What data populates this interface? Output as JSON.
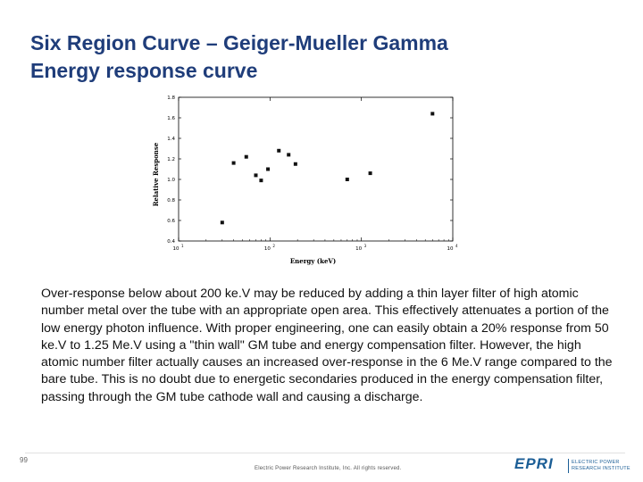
{
  "slide": {
    "title_line1": "Six Region Curve – Geiger-Mueller Gamma",
    "title_line2": "Energy response curve",
    "body": "Over-response below about 200 ke.V may be reduced by adding a thin layer filter of high atomic number metal over the tube with an appropriate open area. This effectively attenuates a portion of the low energy photon influence. With proper engineering, one can easily obtain a 20% response from 50 ke.V to 1.25 Me.V using a \"thin wall\" GM tube and energy compensation filter. However, the high atomic number filter actually causes an increased over-response in the 6 Me.V range compared to the bare tube. This is no doubt due to energetic secondaries produced in the energy compensation filter, passing through the GM tube cathode wall and causing a discharge.",
    "page_number": "99",
    "copyright": "Electric Power Research Institute, Inc. All rights reserved.",
    "logo": {
      "word": "EPRI",
      "line1": "ELECTRIC POWER",
      "line2": "RESEARCH INSTITUTE"
    }
  },
  "colors": {
    "title": "#1f3d7a",
    "logo": "#1b5e96",
    "points": "#111111"
  },
  "chart_data": {
    "type": "scatter",
    "xlabel": "Energy (keV)",
    "ylabel": "Relative Response",
    "xscale": "log",
    "xlim": [
      10,
      10000
    ],
    "ylim": [
      0.4,
      1.8
    ],
    "x_ticks": [
      {
        "value": 10,
        "base": "10",
        "exp": "1"
      },
      {
        "value": 100,
        "base": "10",
        "exp": "2"
      },
      {
        "value": 1000,
        "base": "10",
        "exp": "3"
      },
      {
        "value": 10000,
        "base": "10",
        "exp": "4"
      }
    ],
    "y_ticks": [
      {
        "value": 0.4,
        "label": "0.4"
      },
      {
        "value": 0.6,
        "label": "0.6"
      },
      {
        "value": 0.8,
        "label": "0.8"
      },
      {
        "value": 1.0,
        "label": "1.0"
      },
      {
        "value": 1.2,
        "label": "1.2"
      },
      {
        "value": 1.4,
        "label": "1.4"
      },
      {
        "value": 1.6,
        "label": "1.6"
      },
      {
        "value": 1.8,
        "label": "1.8"
      }
    ],
    "grid": false,
    "x": [
      30,
      40,
      55,
      70,
      80,
      95,
      125,
      160,
      190,
      700,
      1250,
      6000
    ],
    "y": [
      0.58,
      1.16,
      1.22,
      1.04,
      0.99,
      1.1,
      1.28,
      1.24,
      1.15,
      1.0,
      1.06,
      1.64
    ]
  }
}
